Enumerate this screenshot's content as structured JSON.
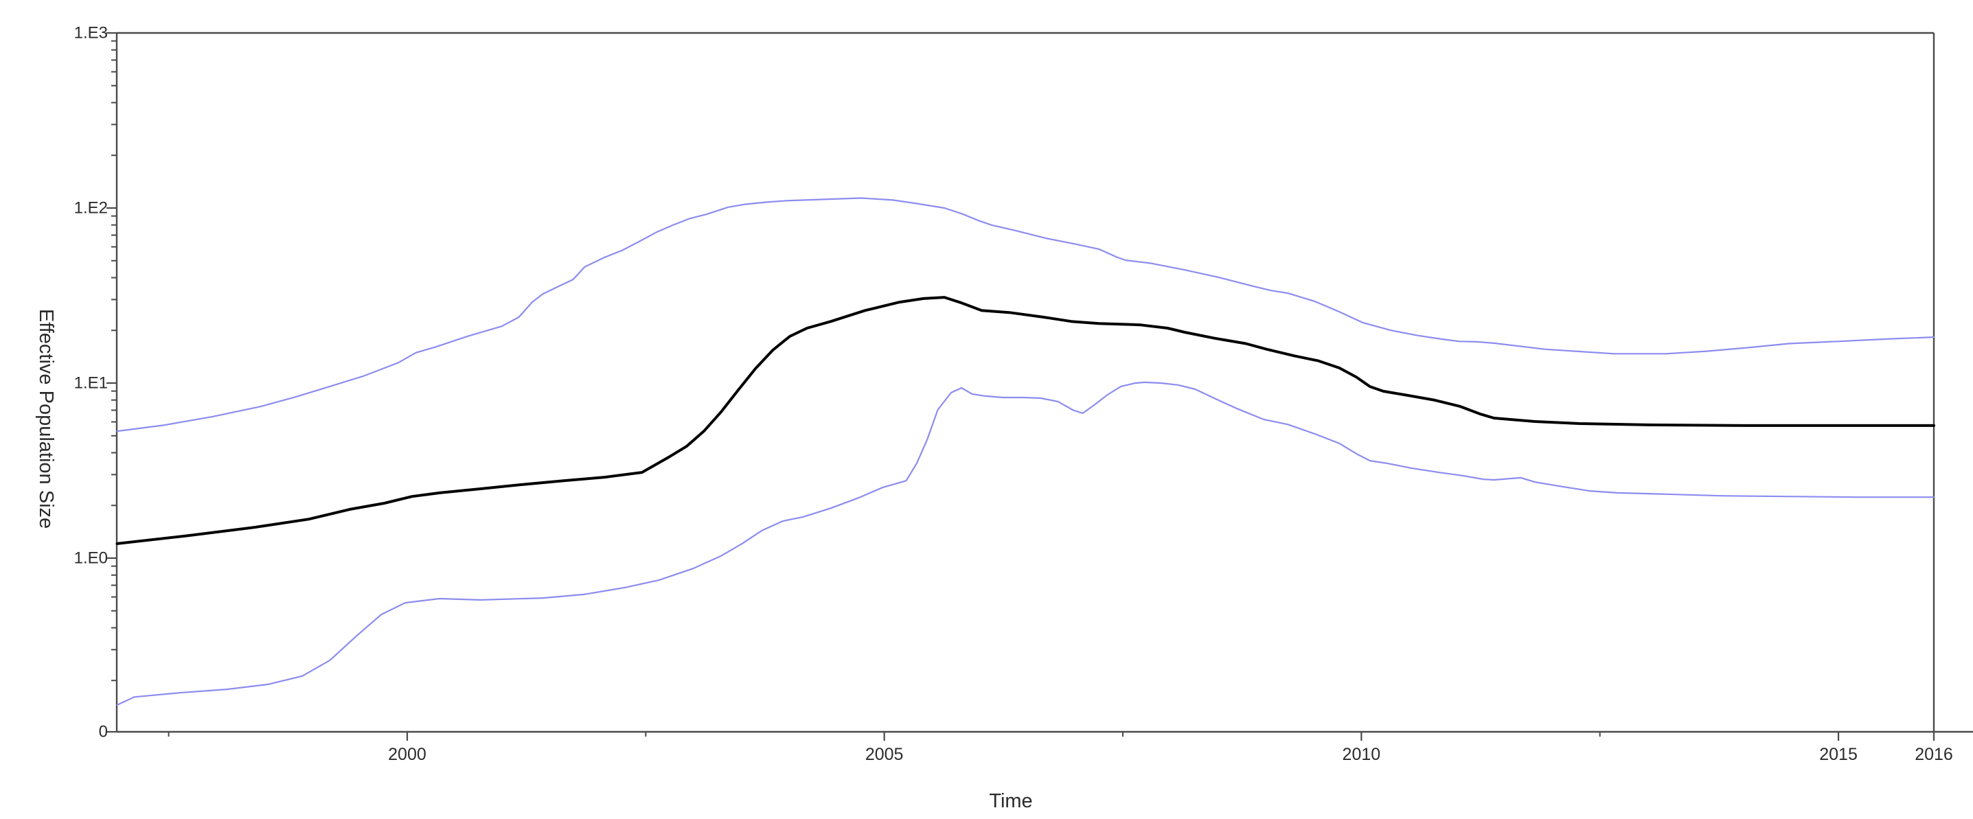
{
  "figure": {
    "kind": "bayesian-skyline-plot",
    "background": "#ffffff"
  },
  "colors": {
    "axis": "#4a4a4a",
    "label_text": "#2b2b2b",
    "median_line": "#000000",
    "hpd_line": "#8c8cf0",
    "background": "#ffffff"
  },
  "chart_data": {
    "type": "line",
    "title": "",
    "xlabel": "Time",
    "ylabel": "Effective Population Size",
    "y_scale": "log10",
    "x_range": [
      1996.96,
      2016
    ],
    "y_axis_major_tick_labels": [
      "1.E3",
      "1.E2",
      "1.E1",
      "1.E0",
      "0"
    ],
    "y_axis_major_tick_values": [
      1000,
      100,
      10,
      1,
      0
    ],
    "x_axis_major_tick_labels": [
      "2000",
      "2005",
      "2010",
      "2015",
      "2016"
    ],
    "x_axis_major_tick_values": [
      2000,
      2005,
      2010,
      2015,
      2016
    ],
    "x_axis_minor_tick_values": [
      1997.5,
      2002.5,
      2007.5,
      2012.5
    ],
    "grid": "off",
    "legend_position": "none",
    "series": [
      {
        "name": "upper-95-hpd",
        "color": "#8c8cf0",
        "width": 2.2,
        "points": [
          [
            1996.96,
            5.31
          ],
          [
            1997.46,
            5.76
          ],
          [
            1997.96,
            6.43
          ],
          [
            1998.47,
            7.36
          ],
          [
            1998.83,
            8.33
          ],
          [
            1999.19,
            9.57
          ],
          [
            1999.55,
            11.0
          ],
          [
            1999.91,
            13.1
          ],
          [
            2000.09,
            14.9
          ],
          [
            2000.3,
            16.1
          ],
          [
            2000.63,
            18.5
          ],
          [
            2000.99,
            21.1
          ],
          [
            2001.17,
            23.8
          ],
          [
            2001.31,
            29.0
          ],
          [
            2001.42,
            32.3
          ],
          [
            2001.56,
            35.1
          ],
          [
            2001.74,
            39.1
          ],
          [
            2001.86,
            46.1
          ],
          [
            2002.07,
            52.3
          ],
          [
            2002.25,
            57.2
          ],
          [
            2002.43,
            64.3
          ],
          [
            2002.62,
            73.1
          ],
          [
            2002.78,
            79.7
          ],
          [
            2002.96,
            87.0
          ],
          [
            2003.14,
            92.1
          ],
          [
            2003.36,
            101.0
          ],
          [
            2003.54,
            105.0
          ],
          [
            2003.76,
            108.0
          ],
          [
            2003.97,
            110.0
          ],
          [
            2004.37,
            112.0
          ],
          [
            2004.76,
            114.0
          ],
          [
            2005.09,
            111.0
          ],
          [
            2005.34,
            106.0
          ],
          [
            2005.63,
            100.0
          ],
          [
            2005.81,
            92.9
          ],
          [
            2005.99,
            84.7
          ],
          [
            2006.13,
            79.7
          ],
          [
            2006.37,
            74.4
          ],
          [
            2006.69,
            67.3
          ],
          [
            2007.0,
            62.3
          ],
          [
            2007.25,
            58.2
          ],
          [
            2007.43,
            52.6
          ],
          [
            2007.53,
            50.3
          ],
          [
            2007.79,
            48.4
          ],
          [
            2008.15,
            44.3
          ],
          [
            2008.51,
            40.1
          ],
          [
            2008.87,
            35.7
          ],
          [
            2009.05,
            33.8
          ],
          [
            2009.23,
            32.6
          ],
          [
            2009.51,
            29.3
          ],
          [
            2009.77,
            25.5
          ],
          [
            2010.02,
            22.1
          ],
          [
            2010.13,
            21.3
          ],
          [
            2010.31,
            20.0
          ],
          [
            2010.59,
            18.7
          ],
          [
            2010.85,
            17.8
          ],
          [
            2011.03,
            17.3
          ],
          [
            2011.21,
            17.2
          ],
          [
            2011.39,
            16.9
          ],
          [
            2011.93,
            15.6
          ],
          [
            2012.65,
            14.7
          ],
          [
            2013.19,
            14.7
          ],
          [
            2013.62,
            15.2
          ],
          [
            2014.09,
            16.0
          ],
          [
            2014.48,
            16.8
          ],
          [
            2014.99,
            17.3
          ],
          [
            2015.56,
            17.9
          ],
          [
            2016,
            18.3
          ]
        ]
      },
      {
        "name": "lower-95-hpd",
        "color": "#8c8cf0",
        "width": 2.2,
        "points": [
          [
            1996.96,
            0.145
          ],
          [
            1997.14,
            0.161
          ],
          [
            1997.61,
            0.17
          ],
          [
            1998.11,
            0.178
          ],
          [
            1998.54,
            0.19
          ],
          [
            1998.9,
            0.212
          ],
          [
            1999.19,
            0.261
          ],
          [
            1999.48,
            0.364
          ],
          [
            1999.73,
            0.477
          ],
          [
            1999.98,
            0.556
          ],
          [
            2000.34,
            0.587
          ],
          [
            2000.77,
            0.577
          ],
          [
            2001.42,
            0.592
          ],
          [
            2001.85,
            0.62
          ],
          [
            2002.28,
            0.679
          ],
          [
            2002.64,
            0.75
          ],
          [
            2003.0,
            0.874
          ],
          [
            2003.29,
            1.03
          ],
          [
            2003.51,
            1.21
          ],
          [
            2003.72,
            1.44
          ],
          [
            2003.94,
            1.63
          ],
          [
            2004.15,
            1.72
          ],
          [
            2004.44,
            1.93
          ],
          [
            2004.73,
            2.21
          ],
          [
            2004.98,
            2.53
          ],
          [
            2005.23,
            2.77
          ],
          [
            2005.34,
            3.48
          ],
          [
            2005.45,
            4.76
          ],
          [
            2005.56,
            7.03
          ],
          [
            2005.7,
            8.81
          ],
          [
            2005.81,
            9.39
          ],
          [
            2005.92,
            8.66
          ],
          [
            2006.06,
            8.43
          ],
          [
            2006.24,
            8.27
          ],
          [
            2006.46,
            8.27
          ],
          [
            2006.64,
            8.2
          ],
          [
            2006.82,
            7.84
          ],
          [
            2006.98,
            7.0
          ],
          [
            2007.08,
            6.73
          ],
          [
            2007.2,
            7.49
          ],
          [
            2007.34,
            8.58
          ],
          [
            2007.48,
            9.57
          ],
          [
            2007.63,
            10.0
          ],
          [
            2007.73,
            10.1
          ],
          [
            2007.9,
            10.0
          ],
          [
            2008.08,
            9.75
          ],
          [
            2008.26,
            9.22
          ],
          [
            2008.47,
            8.13
          ],
          [
            2008.69,
            7.17
          ],
          [
            2008.98,
            6.19
          ],
          [
            2009.23,
            5.8
          ],
          [
            2009.51,
            5.13
          ],
          [
            2009.77,
            4.52
          ],
          [
            2009.95,
            3.94
          ],
          [
            2010.09,
            3.6
          ],
          [
            2010.27,
            3.48
          ],
          [
            2010.52,
            3.27
          ],
          [
            2010.81,
            3.09
          ],
          [
            2011.06,
            2.96
          ],
          [
            2011.28,
            2.82
          ],
          [
            2011.39,
            2.8
          ],
          [
            2011.67,
            2.88
          ],
          [
            2011.82,
            2.72
          ],
          [
            2012.11,
            2.56
          ],
          [
            2012.39,
            2.42
          ],
          [
            2012.68,
            2.36
          ],
          [
            2013.19,
            2.32
          ],
          [
            2013.76,
            2.27
          ],
          [
            2014.48,
            2.25
          ],
          [
            2015.2,
            2.23
          ],
          [
            2016,
            2.23
          ]
        ]
      },
      {
        "name": "median",
        "color": "#000000",
        "width": 4,
        "points": [
          [
            1996.96,
            1.21
          ],
          [
            1997.68,
            1.34
          ],
          [
            1998.4,
            1.5
          ],
          [
            1998.97,
            1.67
          ],
          [
            1999.4,
            1.9
          ],
          [
            1999.76,
            2.06
          ],
          [
            2000.05,
            2.25
          ],
          [
            2000.34,
            2.36
          ],
          [
            2000.77,
            2.49
          ],
          [
            2001.2,
            2.63
          ],
          [
            2001.64,
            2.77
          ],
          [
            2002.07,
            2.9
          ],
          [
            2002.46,
            3.09
          ],
          [
            2002.75,
            3.8
          ],
          [
            2002.93,
            4.36
          ],
          [
            2003.11,
            5.32
          ],
          [
            2003.29,
            6.85
          ],
          [
            2003.47,
            9.14
          ],
          [
            2003.65,
            12.1
          ],
          [
            2003.83,
            15.4
          ],
          [
            2004.01,
            18.5
          ],
          [
            2004.19,
            20.6
          ],
          [
            2004.44,
            22.5
          ],
          [
            2004.8,
            26.0
          ],
          [
            2005.16,
            29.0
          ],
          [
            2005.41,
            30.4
          ],
          [
            2005.63,
            30.9
          ],
          [
            2005.81,
            28.7
          ],
          [
            2006.02,
            26.0
          ],
          [
            2006.31,
            25.3
          ],
          [
            2006.67,
            23.8
          ],
          [
            2006.96,
            22.5
          ],
          [
            2007.25,
            21.9
          ],
          [
            2007.68,
            21.5
          ],
          [
            2007.97,
            20.6
          ],
          [
            2008.15,
            19.5
          ],
          [
            2008.47,
            18.0
          ],
          [
            2008.79,
            16.8
          ],
          [
            2009.01,
            15.6
          ],
          [
            2009.3,
            14.3
          ],
          [
            2009.55,
            13.4
          ],
          [
            2009.77,
            12.2
          ],
          [
            2009.95,
            10.8
          ],
          [
            2010.09,
            9.55
          ],
          [
            2010.23,
            8.98
          ],
          [
            2010.49,
            8.5
          ],
          [
            2010.77,
            7.99
          ],
          [
            2011.03,
            7.37
          ],
          [
            2011.24,
            6.67
          ],
          [
            2011.39,
            6.31
          ],
          [
            2011.82,
            6.03
          ],
          [
            2012.29,
            5.87
          ],
          [
            2013.01,
            5.77
          ],
          [
            2014.09,
            5.72
          ],
          [
            2015.17,
            5.72
          ],
          [
            2016,
            5.72
          ]
        ]
      }
    ]
  }
}
